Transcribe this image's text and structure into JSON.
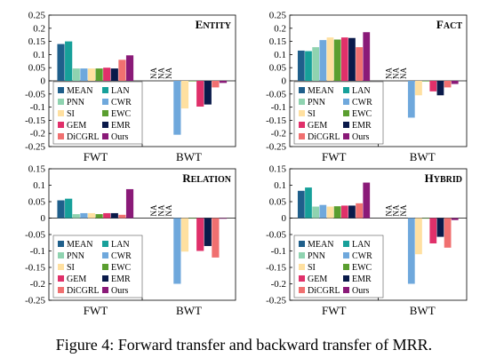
{
  "figure_caption": "Figure 4: Forward transfer and backward transfer of MRR.",
  "chart_data": [
    {
      "type": "bar",
      "title": "ENTITY",
      "categories": [
        "FWT",
        "BWT"
      ],
      "ylim": [
        -0.25,
        0.25
      ],
      "yticks": [
        "0.25",
        "0.2",
        "0.15",
        "0.1",
        "0.05",
        "0",
        "-0.05",
        "-0.1",
        "-0.15",
        "-0.2",
        "-0.25"
      ],
      "na_label": "NA",
      "series": [
        {
          "name": "MEAN",
          "values": [
            0.14,
            null
          ]
        },
        {
          "name": "LAN",
          "values": [
            0.15,
            null
          ]
        },
        {
          "name": "PNN",
          "values": [
            0.047,
            null
          ]
        },
        {
          "name": "CWR",
          "values": [
            0.047,
            -0.205
          ]
        },
        {
          "name": "SI",
          "values": [
            0.047,
            -0.105
          ]
        },
        {
          "name": "EWC",
          "values": [
            0.047,
            -0.001
          ]
        },
        {
          "name": "GEM",
          "values": [
            0.05,
            -0.098
          ]
        },
        {
          "name": "EMR",
          "values": [
            0.047,
            -0.09
          ]
        },
        {
          "name": "DiCGRL",
          "values": [
            0.08,
            -0.025
          ]
        },
        {
          "name": "Ours",
          "values": [
            0.097,
            -0.008
          ]
        }
      ]
    },
    {
      "type": "bar",
      "title": "FACT",
      "categories": [
        "FWT",
        "BWT"
      ],
      "ylim": [
        -0.25,
        0.25
      ],
      "yticks": [
        "0.25",
        "0.2",
        "0.15",
        "0.1",
        "0.05",
        "0",
        "-0.05",
        "-0.1",
        "-0.15",
        "-0.2",
        "-0.25"
      ],
      "na_label": "NA",
      "series": [
        {
          "name": "MEAN",
          "values": [
            0.115,
            null
          ]
        },
        {
          "name": "LAN",
          "values": [
            0.113,
            null
          ]
        },
        {
          "name": "PNN",
          "values": [
            0.128,
            null
          ]
        },
        {
          "name": "CWR",
          "values": [
            0.155,
            -0.14
          ]
        },
        {
          "name": "SI",
          "values": [
            0.165,
            -0.055
          ]
        },
        {
          "name": "EWC",
          "values": [
            0.157,
            -0.001
          ]
        },
        {
          "name": "GEM",
          "values": [
            0.165,
            -0.04
          ]
        },
        {
          "name": "EMR",
          "values": [
            0.163,
            -0.055
          ]
        },
        {
          "name": "DiCGRL",
          "values": [
            0.128,
            -0.025
          ]
        },
        {
          "name": "Ours",
          "values": [
            0.185,
            -0.012
          ]
        }
      ]
    },
    {
      "type": "bar",
      "title": "RELATION",
      "categories": [
        "FWT",
        "BWT"
      ],
      "ylim": [
        -0.25,
        0.15
      ],
      "yticks": [
        "0.15",
        "0.1",
        "0.05",
        "0",
        "-0.05",
        "-0.1",
        "-0.15",
        "-0.2",
        "-0.25"
      ],
      "na_label": "NA",
      "series": [
        {
          "name": "MEAN",
          "values": [
            0.054,
            null
          ]
        },
        {
          "name": "LAN",
          "values": [
            0.059,
            null
          ]
        },
        {
          "name": "PNN",
          "values": [
            0.012,
            null
          ]
        },
        {
          "name": "CWR",
          "values": [
            0.015,
            -0.2
          ]
        },
        {
          "name": "SI",
          "values": [
            0.015,
            -0.102
          ]
        },
        {
          "name": "EWC",
          "values": [
            0.012,
            -0.001
          ]
        },
        {
          "name": "GEM",
          "values": [
            0.015,
            -0.1
          ]
        },
        {
          "name": "EMR",
          "values": [
            0.015,
            -0.085
          ]
        },
        {
          "name": "DiCGRL",
          "values": [
            0.01,
            -0.12
          ]
        },
        {
          "name": "Ours",
          "values": [
            0.088,
            -0.002
          ]
        }
      ]
    },
    {
      "type": "bar",
      "title": "HYBRID",
      "categories": [
        "FWT",
        "BWT"
      ],
      "ylim": [
        -0.25,
        0.15
      ],
      "yticks": [
        "0.15",
        "0.1",
        "0.05",
        "0",
        "-0.05",
        "-0.1",
        "-0.15",
        "-0.2",
        "-0.25"
      ],
      "na_label": "NA",
      "series": [
        {
          "name": "MEAN",
          "values": [
            0.083,
            null
          ]
        },
        {
          "name": "LAN",
          "values": [
            0.093,
            null
          ]
        },
        {
          "name": "PNN",
          "values": [
            0.035,
            null
          ]
        },
        {
          "name": "CWR",
          "values": [
            0.04,
            -0.2
          ]
        },
        {
          "name": "SI",
          "values": [
            0.035,
            -0.11
          ]
        },
        {
          "name": "EWC",
          "values": [
            0.036,
            -0.001
          ]
        },
        {
          "name": "GEM",
          "values": [
            0.038,
            -0.077
          ]
        },
        {
          "name": "EMR",
          "values": [
            0.038,
            -0.057
          ]
        },
        {
          "name": "DiCGRL",
          "values": [
            0.045,
            -0.09
          ]
        },
        {
          "name": "Ours",
          "values": [
            0.108,
            -0.006
          ]
        }
      ]
    }
  ],
  "colors": {
    "MEAN": "#1f5f8b",
    "LAN": "#17a09a",
    "PNN": "#8fd3b0",
    "CWR": "#6fa8dc",
    "SI": "#ffe0a0",
    "EWC": "#5a9e2f",
    "GEM": "#e0306a",
    "EMR": "#0a1a4a",
    "DiCGRL": "#f07070",
    "Ours": "#8a1a78"
  },
  "legend_order": [
    "MEAN",
    "LAN",
    "PNN",
    "CWR",
    "SI",
    "EWC",
    "GEM",
    "EMR",
    "DiCGRL",
    "Ours"
  ]
}
